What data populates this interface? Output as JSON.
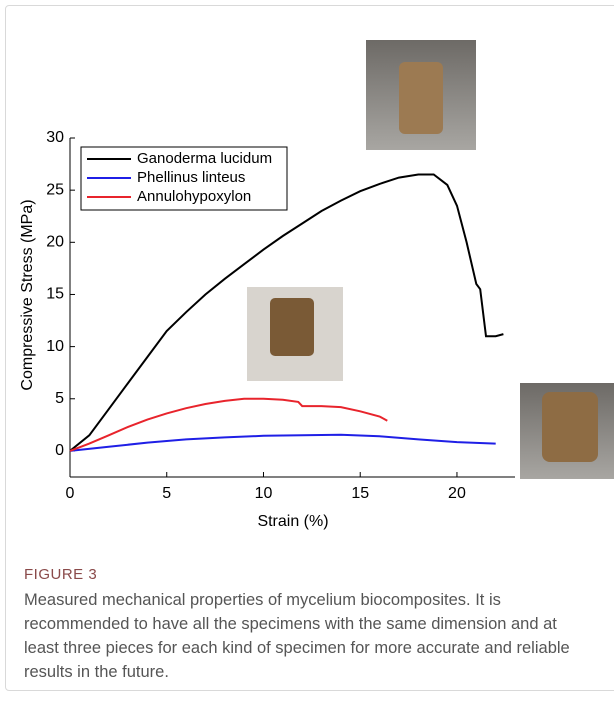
{
  "chart_data": {
    "type": "line",
    "xlabel": "Strain (%)",
    "ylabel": "Compressive Stress (MPa)",
    "xlim": [
      0,
      23
    ],
    "ylim": [
      -2.5,
      30
    ],
    "xticks": [
      0,
      5,
      10,
      15,
      20
    ],
    "yticks": [
      0,
      5,
      10,
      15,
      20,
      25,
      30
    ],
    "legend": "upper-left",
    "series": [
      {
        "name": "Ganoderma lucidum",
        "color": "#000000",
        "x": [
          0,
          1,
          2,
          3,
          4,
          5,
          6,
          7,
          8,
          9,
          10,
          11,
          12,
          13,
          14,
          15,
          16,
          17,
          18,
          18.8,
          19.5,
          20,
          20.5,
          21,
          21.2,
          21.5,
          22,
          22.4
        ],
        "values": [
          0,
          1.5,
          4,
          6.5,
          9,
          11.5,
          13.3,
          15,
          16.5,
          17.9,
          19.3,
          20.6,
          21.8,
          23,
          24,
          24.9,
          25.6,
          26.2,
          26.5,
          26.5,
          25.5,
          23.5,
          20,
          16,
          15.5,
          11,
          11,
          11.2
        ]
      },
      {
        "name": "Phellinus linteus",
        "color": "#1f1fe6",
        "x": [
          0,
          2,
          4,
          6,
          8,
          10,
          12,
          14,
          16,
          18,
          20,
          22
        ],
        "values": [
          0,
          0.4,
          0.8,
          1.1,
          1.3,
          1.45,
          1.5,
          1.55,
          1.4,
          1.1,
          0.85,
          0.7
        ]
      },
      {
        "name": "Annulohypoxylon",
        "color": "#e8242c",
        "x": [
          0,
          1,
          2,
          3,
          4,
          5,
          6,
          7,
          8,
          9,
          10,
          11,
          11.8,
          12,
          13,
          14,
          15,
          16,
          16.4
        ],
        "values": [
          0,
          0.7,
          1.5,
          2.3,
          3,
          3.6,
          4.1,
          4.5,
          4.8,
          5,
          5,
          4.9,
          4.7,
          4.3,
          4.3,
          4.2,
          3.8,
          3.3,
          2.9
        ]
      }
    ]
  },
  "figure": {
    "label": "FIGURE 3",
    "caption": "Measured mechanical properties of mycelium biocomposites. It is recommended to have all the specimens with the same dimension and at least three pieces for each kind of specimen for more accurate and reliable results in the future."
  }
}
